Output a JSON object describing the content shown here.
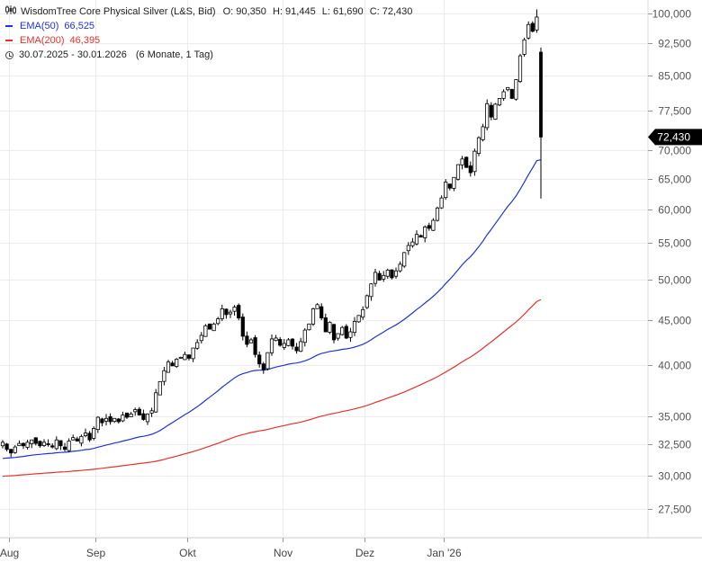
{
  "legend": {
    "title": "WisdomTree Core Physical Silver (L&S, Bid)",
    "ohlc": {
      "o": "O: 90,350",
      "h": "H: 91,445",
      "l": "L: 61,690",
      "c": "C: 72,430"
    },
    "ema50": {
      "label": "EMA(50)",
      "value": "66,525",
      "color": "#1f33d8"
    },
    "ema200": {
      "label": "EMA(200)",
      "value": "46,395",
      "color": "#e5322b"
    },
    "range": "30.07.2025 - 30.01.2026",
    "range_extra": "(6 Monate, 1 Tag)",
    "icon": "candlestick-icon",
    "range_icon": "clock-icon"
  },
  "chart_data": {
    "type": "candlestick",
    "title": "WisdomTree Core Physical Silver (L&S, Bid)",
    "y_scale": "log",
    "ylim": [
      25500,
      103500
    ],
    "y_ticks": [
      27500,
      30000,
      32500,
      35000,
      40000,
      45000,
      50000,
      55000,
      60000,
      65000,
      70000,
      77500,
      85000,
      92500,
      100000
    ],
    "y_tick_labels": [
      "27,500",
      "30,000",
      "32,500",
      "35,000",
      "40,000",
      "45,000",
      "50,000",
      "55,000",
      "60,000",
      "65,000",
      "70,000",
      "77,500",
      "85,000",
      "92,500",
      "100,000"
    ],
    "x_ticks": [
      {
        "label": "Aug",
        "index": 1.5
      },
      {
        "label": "Sep",
        "index": 22.5
      },
      {
        "label": "Okt",
        "index": 44.5
      },
      {
        "label": "Nov",
        "index": 67.5
      },
      {
        "label": "Dez",
        "index": 87.5
      },
      {
        "label": "Jan '26",
        "index": 106.5
      }
    ],
    "last_price_label": "72,430",
    "last_price": 72430,
    "grid": true,
    "colors": {
      "up": "#ffffff",
      "down": "#000000",
      "ema50": "#1f33d8",
      "ema200": "#e5322b",
      "tag": "#000000"
    },
    "closes": [
      32700,
      32100,
      31800,
      32300,
      32600,
      32400,
      32700,
      32900,
      32600,
      32400,
      32700,
      32500,
      32300,
      32900,
      32400,
      32100,
      32800,
      33100,
      32800,
      33200,
      33500,
      32900,
      33900,
      34900,
      34400,
      34800,
      34500,
      34800,
      34500,
      35100,
      34900,
      35200,
      35600,
      35100,
      34700,
      35200,
      35500,
      37200,
      38300,
      39400,
      40300,
      39900,
      40600,
      40800,
      41100,
      40700,
      41800,
      42400,
      43200,
      44300,
      43900,
      44500,
      45100,
      46300,
      45600,
      45900,
      46500,
      45200,
      43100,
      42200,
      42700,
      41100,
      40100,
      39500,
      41300,
      42800,
      42900,
      42100,
      42300,
      42700,
      42000,
      41500,
      42500,
      43800,
      44500,
      46300,
      46800,
      45200,
      43600,
      44700,
      42700,
      43400,
      44100,
      42900,
      43600,
      44800,
      45500,
      46200,
      47900,
      49400,
      50900,
      49900,
      50500,
      51200,
      50200,
      51100,
      52000,
      53600,
      54600,
      55100,
      56200,
      55800,
      57300,
      57100,
      58300,
      60200,
      61800,
      64400,
      63400,
      65200,
      67400,
      68400,
      66900,
      66000,
      69800,
      72300,
      74400,
      79000,
      76300,
      78900,
      80100,
      81500,
      82400,
      80100,
      84100,
      89500,
      93300,
      97100,
      95400,
      99000,
      72430
    ]
  }
}
